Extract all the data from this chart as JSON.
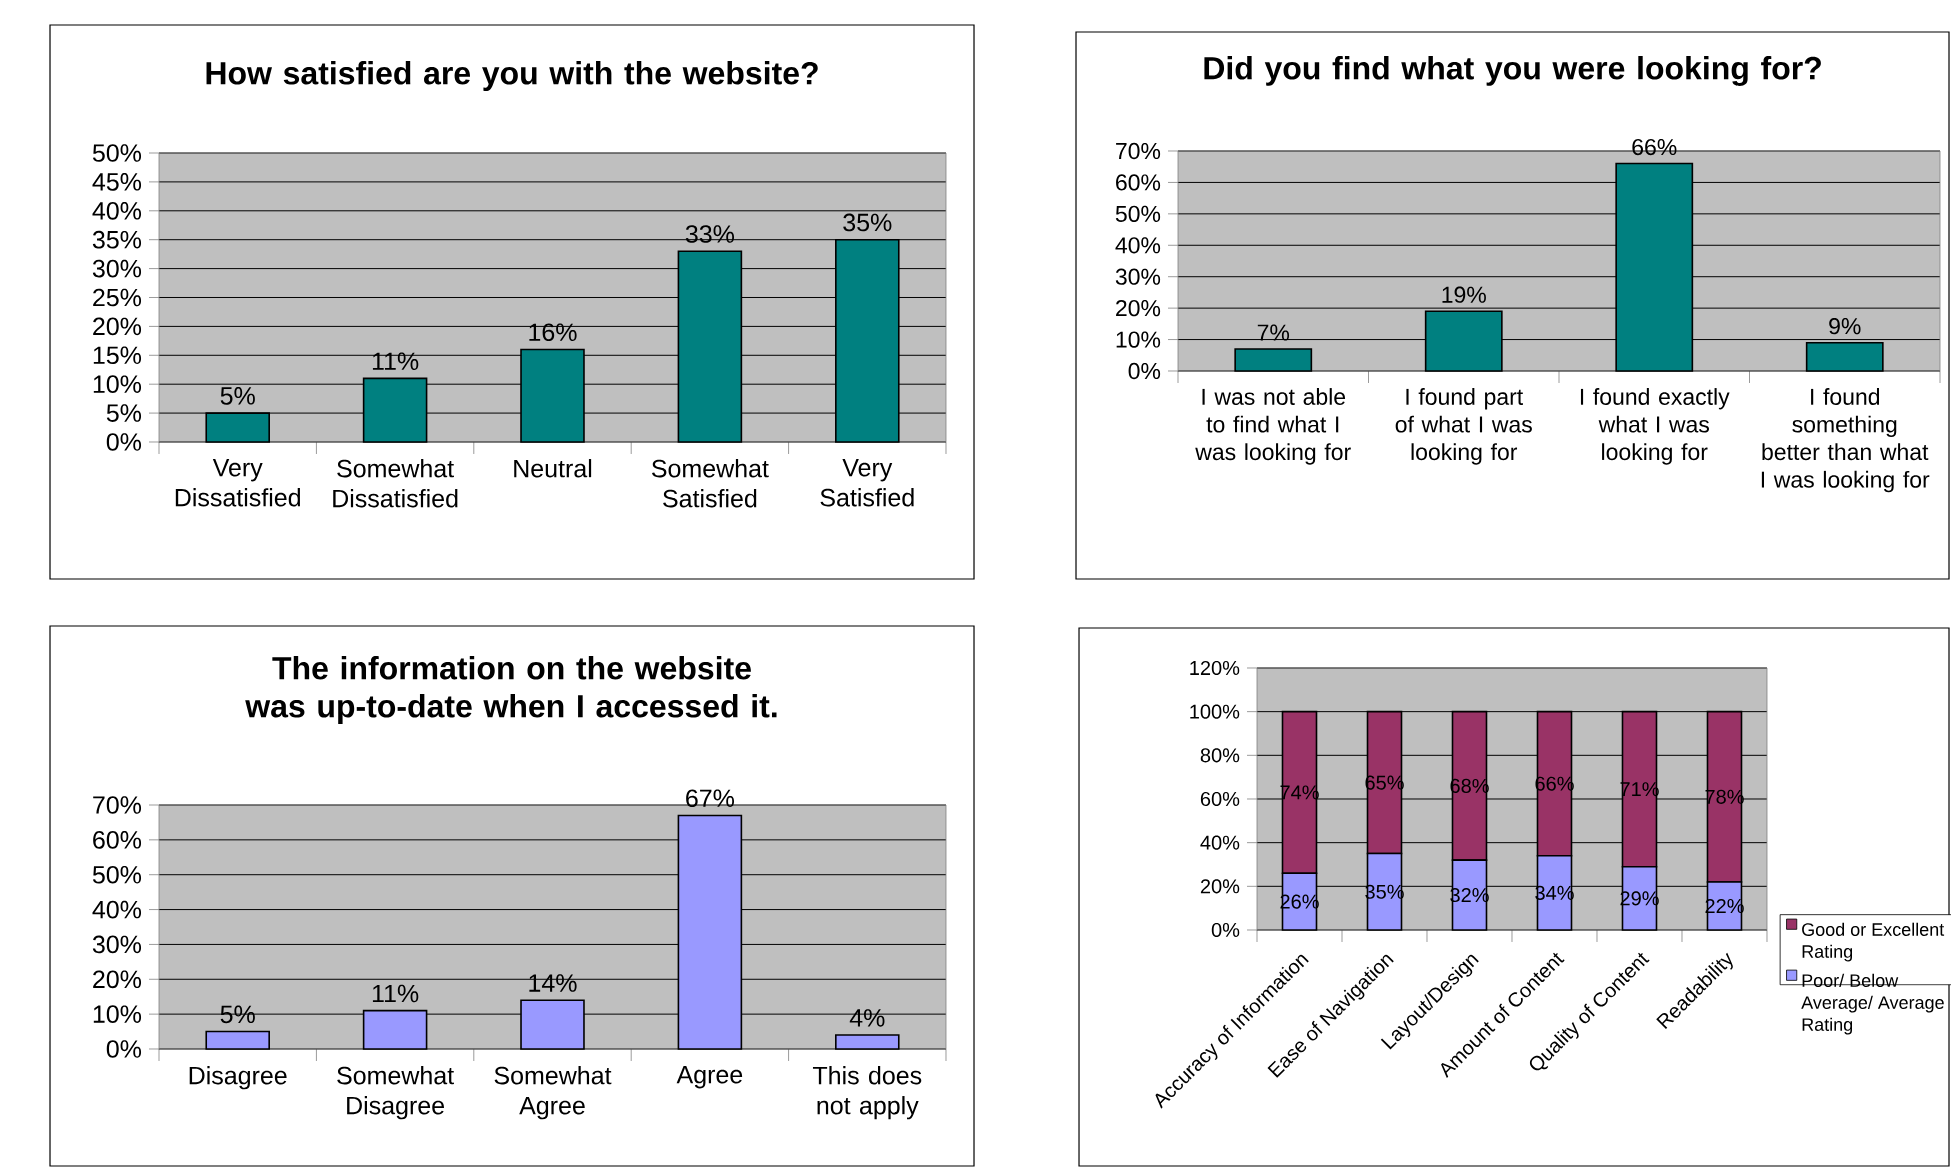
{
  "chart_data": [
    {
      "type": "bar",
      "title": "How satisfied are you with the website?",
      "categories": [
        "Very Dissatisfied",
        "Somewhat Dissatisfied",
        "Neutral",
        "Somewhat Satisfied",
        "Very Satisfied"
      ],
      "values": [
        5,
        11,
        16,
        33,
        35
      ],
      "value_labels": [
        "5%",
        "11%",
        "16%",
        "33%",
        "35%"
      ],
      "color": "#008080",
      "ylim": [
        0,
        50
      ],
      "yticks": [
        {
          "value": 0,
          "label": "0%"
        },
        {
          "value": 5,
          "label": "5%"
        },
        {
          "value": 10,
          "label": "10%"
        },
        {
          "value": 15,
          "label": "15%"
        },
        {
          "value": 20,
          "label": "20%"
        },
        {
          "value": 25,
          "label": "25%"
        },
        {
          "value": 30,
          "label": "30%"
        },
        {
          "value": 35,
          "label": "35%"
        },
        {
          "value": 40,
          "label": "40%"
        },
        {
          "value": 45,
          "label": "45%"
        },
        {
          "value": 50,
          "label": "50%"
        }
      ],
      "grid": "y"
    },
    {
      "type": "bar",
      "title": "Did you find what you were looking for?",
      "categories": [
        "I was not able to find what I was looking for",
        "I found part of what I was looking for",
        "I found exactly what I was looking for",
        "I found something better than what I was looking for"
      ],
      "values": [
        7,
        19,
        66,
        9
      ],
      "value_labels": [
        "7%",
        "19%",
        "66%",
        "9%"
      ],
      "color": "#008080",
      "ylim": [
        0,
        70
      ],
      "yticks": [
        {
          "value": 0,
          "label": "0%"
        },
        {
          "value": 10,
          "label": "10%"
        },
        {
          "value": 20,
          "label": "20%"
        },
        {
          "value": 30,
          "label": "30%"
        },
        {
          "value": 40,
          "label": "40%"
        },
        {
          "value": 50,
          "label": "50%"
        },
        {
          "value": 60,
          "label": "60%"
        },
        {
          "value": 70,
          "label": "70%"
        }
      ],
      "grid": "y"
    },
    {
      "type": "bar",
      "title": "The information on the website was up-to-date when I accessed it.",
      "categories": [
        "Disagree",
        "Somewhat Disagree",
        "Somewhat Agree",
        "Agree",
        "This does not apply"
      ],
      "values": [
        5,
        11,
        14,
        67,
        4
      ],
      "value_labels": [
        "5%",
        "11%",
        "14%",
        "67%",
        "4%"
      ],
      "color": "#9999ff",
      "ylim": [
        0,
        70
      ],
      "yticks": [
        {
          "value": 0,
          "label": "0%"
        },
        {
          "value": 10,
          "label": "10%"
        },
        {
          "value": 20,
          "label": "20%"
        },
        {
          "value": 30,
          "label": "30%"
        },
        {
          "value": 40,
          "label": "40%"
        },
        {
          "value": 50,
          "label": "50%"
        },
        {
          "value": 60,
          "label": "60%"
        },
        {
          "value": 70,
          "label": "70%"
        }
      ],
      "grid": "y"
    },
    {
      "type": "bar",
      "stacked": true,
      "categories": [
        "Accuracy of Information",
        "Ease of Navigation",
        "Layout/Design",
        "Amount of Content",
        "Quality of Content",
        "Readability"
      ],
      "series": [
        {
          "name": "Poor/ Below Average/ Average Rating",
          "color": "#9999ff",
          "values": [
            26,
            35,
            32,
            34,
            29,
            22
          ],
          "value_labels": [
            "26%",
            "35%",
            "32%",
            "34%",
            "29%",
            "22%"
          ]
        },
        {
          "name": "Good or Excellent Rating",
          "color": "#993366",
          "values": [
            74,
            65,
            68,
            66,
            71,
            78
          ],
          "value_labels": [
            "74%",
            "65%",
            "68%",
            "66%",
            "71%",
            "78%"
          ]
        }
      ],
      "ylim": [
        0,
        120
      ],
      "yticks": [
        {
          "value": 0,
          "label": "0%"
        },
        {
          "value": 20,
          "label": "20%"
        },
        {
          "value": 40,
          "label": "40%"
        },
        {
          "value": 60,
          "label": "60%"
        },
        {
          "value": 80,
          "label": "80%"
        },
        {
          "value": 100,
          "label": "100%"
        },
        {
          "value": 120,
          "label": "120%"
        }
      ],
      "grid": "y",
      "legend": "right"
    }
  ]
}
